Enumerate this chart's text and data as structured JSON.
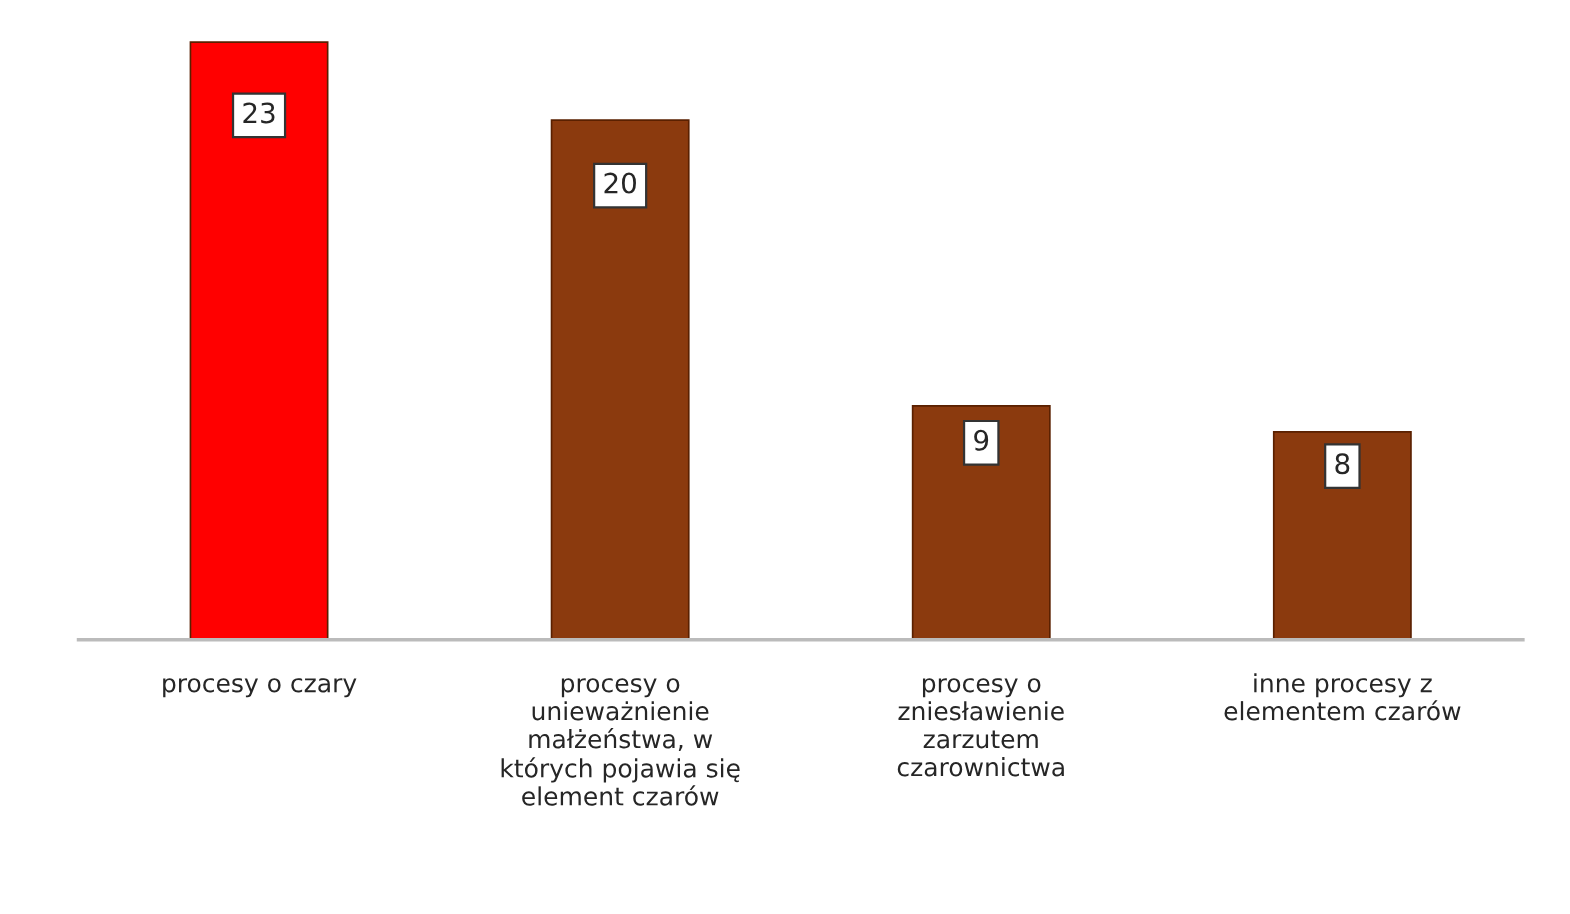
{
  "chart_data": {
    "type": "bar",
    "categories": [
      "procesy o czary",
      "procesy o\nunieważnienie\nmałżeństwa, w\nktórych pojawia się\nelement czarów",
      "procesy o\nzniesławienie\nzarzutem\nczarownictwa",
      "inne procesy z\nelementem czarów"
    ],
    "values": [
      23,
      20,
      9,
      8
    ],
    "colors": [
      "#ff0000",
      "#8b3a0e",
      "#8b3a0e",
      "#8b3a0e"
    ],
    "data_labels": true,
    "grid": false,
    "legend": false
  }
}
